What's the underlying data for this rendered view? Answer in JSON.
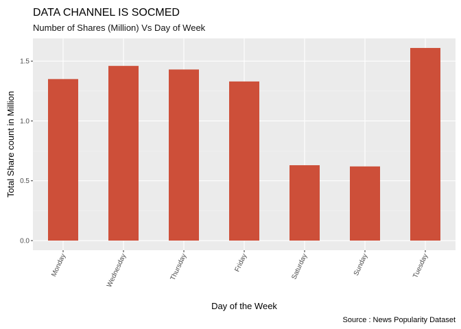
{
  "chart_data": {
    "type": "bar",
    "title": "DATA CHANNEL IS SOCMED",
    "subtitle": "Number of Shares (Million) Vs Day of Week",
    "xlabel": "Day of the Week",
    "ylabel": "Total Share count in Million",
    "caption": "Source : News Popularity Dataset",
    "categories": [
      "Monday",
      "Wednesday",
      "Thursday",
      "Friday",
      "Saturday",
      "Sunday",
      "Tuesday"
    ],
    "values": [
      1.35,
      1.46,
      1.43,
      1.33,
      0.63,
      0.62,
      1.61
    ],
    "ylim": [
      -0.08,
      1.69
    ],
    "yticks": [
      0.0,
      0.5,
      1.0,
      1.5
    ],
    "ytick_labels": [
      "0.0",
      "0.5",
      "1.0",
      "1.5"
    ],
    "grid": true,
    "legend": "none",
    "colors": {
      "bar": "#CD4F39",
      "panel": "#EBEBEB",
      "grid_major": "#FFFFFF",
      "grid_minor": "#F5F5F5",
      "tick_text": "#4D4D4D"
    }
  }
}
